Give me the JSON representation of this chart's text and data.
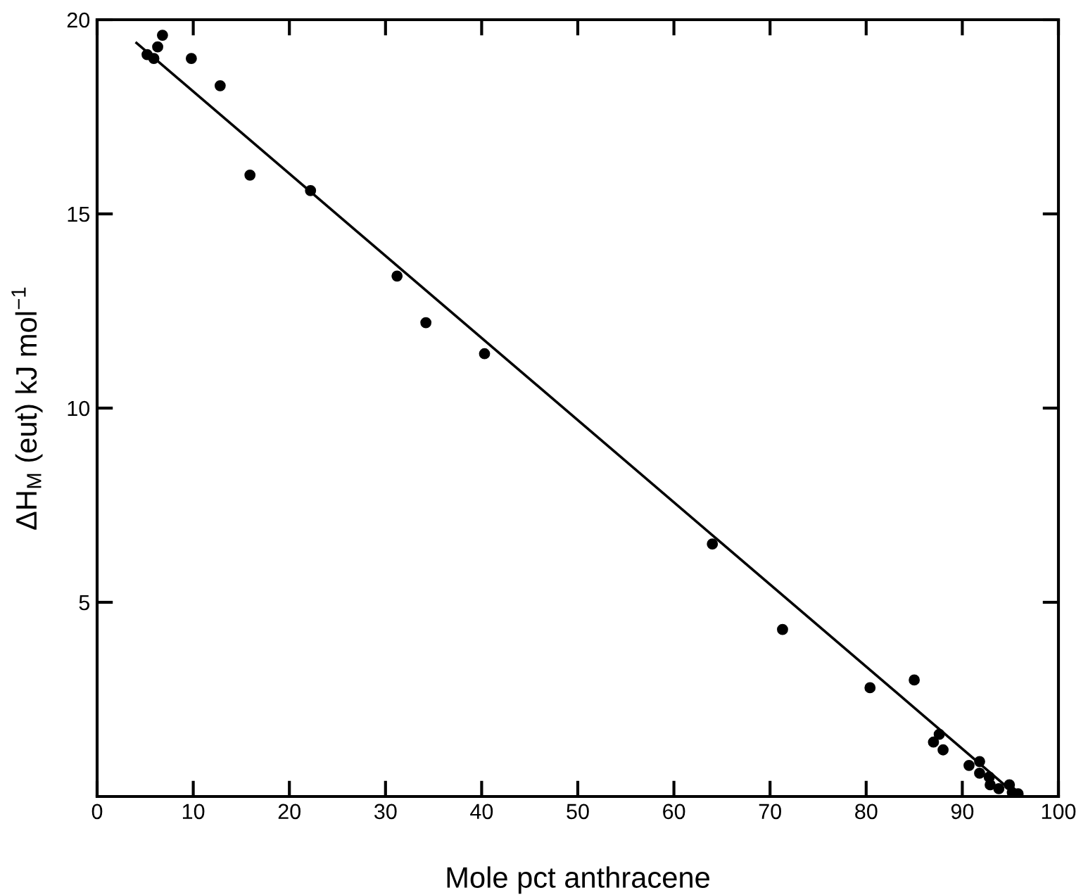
{
  "chart_data": {
    "type": "scatter",
    "xlabel": "Mole pct anthracene",
    "ylabel": "ΔH$_{M}$ (eut) kJ mol$^{−1}$",
    "xlim": [
      0,
      100
    ],
    "ylim": [
      0,
      20
    ],
    "xticks": [
      0,
      10,
      20,
      30,
      40,
      50,
      60,
      70,
      80,
      90,
      100
    ],
    "yticks": [
      5,
      10,
      15,
      20
    ],
    "grid": false,
    "marker": "circle",
    "series": [
      {
        "color": "#000000",
        "x": [
          5.2,
          5.9,
          6.3,
          6.8,
          9.8,
          12.8,
          15.9,
          22.2,
          31.2,
          34.2,
          40.3,
          64.0,
          71.3,
          80.4,
          85.0,
          87.0,
          87.6,
          88.0,
          90.7,
          91.8,
          91.8,
          92.8,
          92.9,
          93.8,
          94.9,
          95.2,
          95.8
        ],
        "values": [
          19.1,
          19.0,
          19.3,
          19.6,
          19.0,
          18.3,
          16.0,
          15.6,
          13.4,
          12.2,
          11.4,
          6.5,
          4.3,
          2.8,
          3.0,
          1.4,
          1.6,
          1.2,
          0.8,
          0.9,
          0.6,
          0.5,
          0.3,
          0.2,
          0.3,
          0.1,
          0.07
        ]
      },
      {
        "type": "line",
        "color": "#000000",
        "x": [
          4.1,
          95.8
        ],
        "values": [
          19.4,
          0.0
        ],
        "line_style": "solid",
        "marker": "none"
      }
    ]
  }
}
